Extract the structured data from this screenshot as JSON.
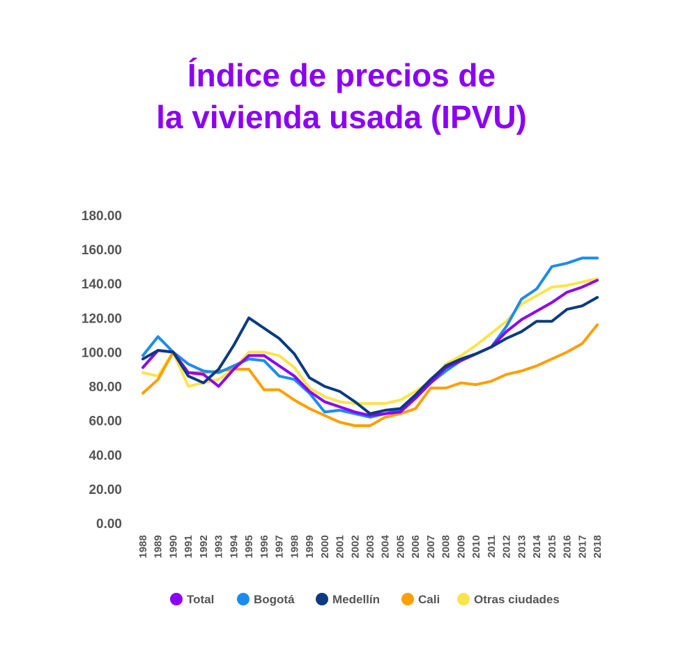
{
  "chart_data": {
    "type": "line",
    "title_line1": "Índice de precios de",
    "title_line2": "la vivienda usada (IPVU)",
    "xlabel": "",
    "ylabel": "",
    "ylim": [
      0,
      180
    ],
    "y_ticks": [
      "0.00",
      "20.00",
      "40.00",
      "60.00",
      "80.00",
      "100.00",
      "120.00",
      "140.00",
      "160.00",
      "180.00"
    ],
    "x": [
      "1988",
      "1989",
      "1990",
      "1991",
      "1992",
      "1993",
      "1994",
      "1995",
      "1996",
      "1997",
      "1998",
      "1999",
      "2000",
      "2001",
      "2002",
      "2003",
      "2004",
      "2005",
      "2006",
      "2007",
      "2008",
      "2009",
      "2010",
      "2011",
      "2012",
      "2013",
      "2014",
      "2015",
      "2016",
      "2017",
      "2018"
    ],
    "grid": false,
    "legend_position": "bottom",
    "series": [
      {
        "name": "Total",
        "color": "#8b00f5",
        "values": [
          91,
          101,
          100,
          88,
          87,
          80,
          90,
          98,
          98,
          92,
          86,
          77,
          71,
          68,
          65,
          63,
          64,
          65,
          73,
          82,
          91,
          95,
          99,
          103,
          112,
          119,
          124,
          129,
          135,
          138,
          142
        ]
      },
      {
        "name": "Bogotá",
        "color": "#1a8cf0",
        "values": [
          98,
          109,
          100,
          93,
          89,
          88,
          92,
          96,
          95,
          86,
          84,
          76,
          65,
          66,
          64,
          62,
          64,
          66,
          74,
          82,
          89,
          95,
          99,
          103,
          115,
          131,
          137,
          150,
          152,
          155,
          155
        ]
      },
      {
        "name": "Medellín",
        "color": "#0a3a82",
        "values": [
          96,
          101,
          100,
          86,
          82,
          90,
          104,
          120,
          114,
          108,
          99,
          85,
          80,
          77,
          71,
          64,
          66,
          67,
          75,
          84,
          92,
          96,
          99,
          103,
          108,
          112,
          118,
          118,
          125,
          127,
          132
        ]
      },
      {
        "name": "Cali",
        "color": "#ff9f00",
        "values": [
          76,
          84,
          100,
          88,
          88,
          89,
          90,
          90,
          78,
          78,
          72,
          67,
          63,
          59,
          57,
          57,
          62,
          64,
          67,
          79,
          79,
          82,
          81,
          83,
          87,
          89,
          92,
          96,
          100,
          105,
          116
        ]
      },
      {
        "name": "Otras ciudades",
        "color": "#ffe34a",
        "values": [
          88,
          86,
          100,
          80,
          82,
          84,
          90,
          100,
          100,
          98,
          91,
          79,
          74,
          71,
          70,
          70,
          70,
          72,
          77,
          83,
          93,
          98,
          104,
          111,
          118,
          128,
          133,
          138,
          139,
          141,
          143
        ]
      }
    ]
  }
}
